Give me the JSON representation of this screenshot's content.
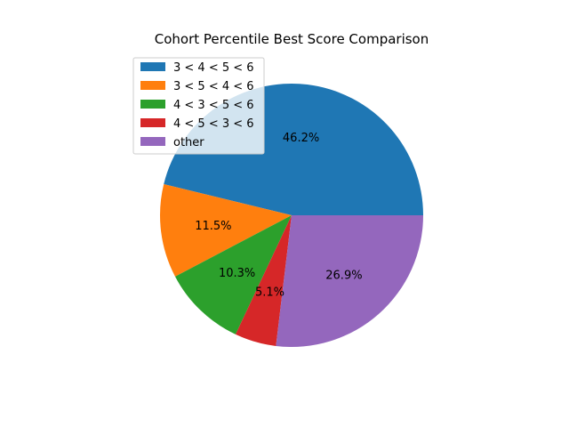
{
  "chart_data": {
    "type": "pie",
    "title": "Cohort Percentile Best Score Comparison",
    "legend_position": "upper-left",
    "slices": [
      {
        "label": "3 < 4 < 5 < 6",
        "value": 46.2,
        "pct_label": "46.2%",
        "color": "#1f77b4"
      },
      {
        "label": "3 < 5 < 4 < 6",
        "value": 11.5,
        "pct_label": "11.5%",
        "color": "#ff7f0e"
      },
      {
        "label": "4 < 3 < 5 < 6",
        "value": 10.3,
        "pct_label": "10.3%",
        "color": "#2ca02c"
      },
      {
        "label": "4 < 5 < 3 < 6",
        "value": 5.1,
        "pct_label": "5.1%",
        "color": "#d62728"
      },
      {
        "label": "other",
        "value": 26.9,
        "pct_label": "26.9%",
        "color": "#9467bd"
      }
    ]
  }
}
